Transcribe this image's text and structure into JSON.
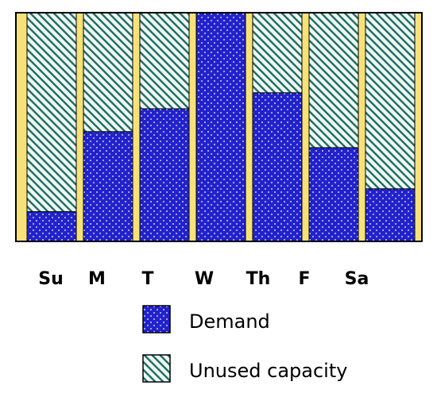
{
  "chart_data": {
    "type": "bar",
    "stacked": true,
    "categories": [
      "Su",
      "M",
      "T",
      "W",
      "Th",
      "F",
      "Sa"
    ],
    "series": [
      {
        "name": "Demand",
        "values": [
          13,
          48,
          58,
          100,
          65,
          41,
          23
        ]
      },
      {
        "name": "Unused capacity",
        "values": [
          87,
          52,
          42,
          0,
          35,
          59,
          77
        ]
      }
    ],
    "ylim": [
      0,
      100
    ],
    "xlabel": "",
    "ylabel": "",
    "grid": false,
    "legend_position": "bottom"
  },
  "colors": {
    "demand": "#2222cc",
    "demand_dots": "#ffffff",
    "unused_bg": "#eef7f2",
    "unused_stripe": "#1f6b63",
    "separator": "#f7e27a",
    "frame": "#000000"
  }
}
